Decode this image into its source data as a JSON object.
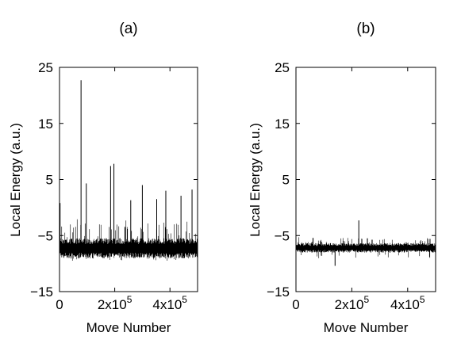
{
  "chart_data": [
    {
      "type": "line",
      "panel_label": "(a)",
      "xlabel": "Move Number",
      "ylabel": "Local Energy (a.u.)",
      "xlim": [
        0,
        500000
      ],
      "ylim": [
        -15,
        25
      ],
      "grid": false,
      "y_ticks": [
        {
          "value": 25,
          "label": "25"
        },
        {
          "value": 15,
          "label": "15"
        },
        {
          "value": 5,
          "label": "5"
        },
        {
          "value": -5,
          "label": "−5"
        },
        {
          "value": -15,
          "label": "−15"
        }
      ],
      "x_ticks": [
        {
          "value": 0,
          "label": "0"
        },
        {
          "value": 200000,
          "label": "2x10^5"
        },
        {
          "value": 400000,
          "label": "4x10^5"
        }
      ],
      "series_summary": {
        "baseline": -7.3,
        "band_spread": 1.3,
        "min_dips": -9.5,
        "seed": 7,
        "extra_upper_noise": 3.5
      },
      "spikes": [
        {
          "x": 78000,
          "y": 22.7
        },
        {
          "x": 97000,
          "y": 4.3
        },
        {
          "x": 185000,
          "y": 7.4
        },
        {
          "x": 197000,
          "y": 7.8
        },
        {
          "x": 258000,
          "y": 1.3
        },
        {
          "x": 300000,
          "y": 4.0
        },
        {
          "x": 352000,
          "y": 1.5
        },
        {
          "x": 385000,
          "y": 3.0
        },
        {
          "x": 440000,
          "y": 2.1
        },
        {
          "x": 480000,
          "y": 3.2
        },
        {
          "x": 2000,
          "y": 0.8
        }
      ]
    },
    {
      "type": "line",
      "panel_label": "(b)",
      "xlabel": "Move Number",
      "ylabel": "Local Energy (a.u.)",
      "xlim": [
        0,
        500000
      ],
      "ylim": [
        -15,
        25
      ],
      "grid": false,
      "y_ticks": [
        {
          "value": 25,
          "label": "25"
        },
        {
          "value": 15,
          "label": "15"
        },
        {
          "value": 5,
          "label": "5"
        },
        {
          "value": -5,
          "label": "−5"
        },
        {
          "value": -15,
          "label": "−15"
        }
      ],
      "x_ticks": [
        {
          "value": 0,
          "label": "0"
        },
        {
          "value": 200000,
          "label": "2x10^5"
        },
        {
          "value": 400000,
          "label": "4x10^5"
        }
      ],
      "series_summary": {
        "baseline": -7.2,
        "band_spread": 0.6,
        "min_dips": -9.2,
        "seed": 13,
        "extra_upper_noise": 1.2
      },
      "spikes": [
        {
          "x": 225000,
          "y": -2.3
        },
        {
          "x": 140000,
          "y": -10.4
        },
        {
          "x": 480000,
          "y": -5.6
        }
      ]
    }
  ]
}
